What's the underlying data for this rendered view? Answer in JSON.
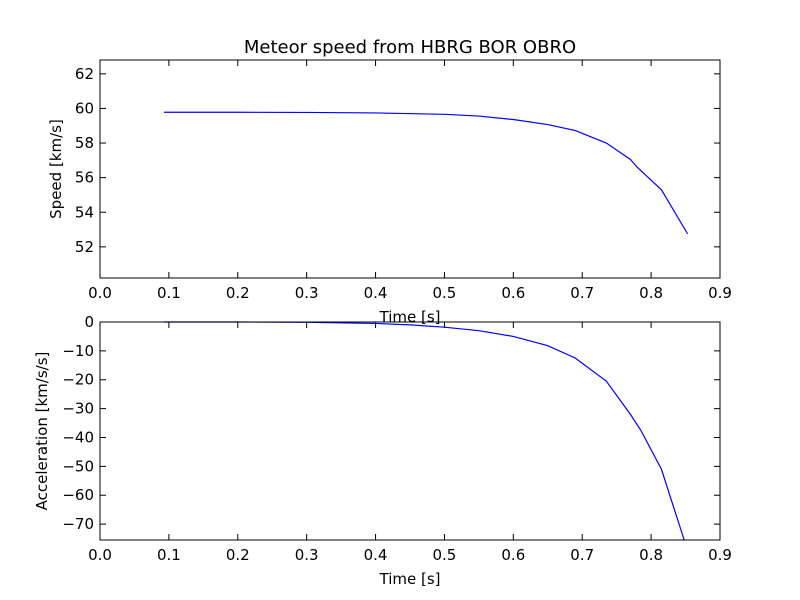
{
  "chart_data": [
    {
      "type": "line",
      "title": "Meteor speed from  HBRG BOR OBRO",
      "xlabel": "Time [s]",
      "ylabel": "Speed [km/s]",
      "xlim": [
        0.0,
        0.9
      ],
      "ylim": [
        50.2,
        62.8
      ],
      "xticks": [
        "0.0",
        "0.1",
        "0.2",
        "0.3",
        "0.4",
        "0.5",
        "0.6",
        "0.7",
        "0.8",
        "0.9"
      ],
      "yticks": [
        "52",
        "54",
        "56",
        "58",
        "60",
        "62"
      ],
      "grid": false,
      "series": [
        {
          "color": "#0000ff",
          "x": [
            0.093,
            0.2,
            0.3,
            0.4,
            0.5,
            0.55,
            0.6,
            0.65,
            0.69,
            0.735,
            0.77,
            0.78,
            0.815,
            0.853
          ],
          "y": [
            59.78,
            59.78,
            59.77,
            59.74,
            59.66,
            59.56,
            59.36,
            59.07,
            58.72,
            58.0,
            57.05,
            56.6,
            55.3,
            52.75
          ]
        }
      ]
    },
    {
      "type": "line",
      "title": "",
      "xlabel": "Time [s]",
      "ylabel": "Acceleration [km/s/s]",
      "xlim": [
        0.0,
        0.9
      ],
      "ylim": [
        -75.5,
        0.0
      ],
      "xticks": [
        "0.0",
        "0.1",
        "0.2",
        "0.3",
        "0.4",
        "0.5",
        "0.6",
        "0.7",
        "0.8",
        "0.9"
      ],
      "yticks": [
        "0",
        "−10",
        "−20",
        "−30",
        "−40",
        "−50",
        "−60",
        "−70"
      ],
      "grid": false,
      "series": [
        {
          "color": "#0000ff",
          "x": [
            0.093,
            0.2,
            0.3,
            0.4,
            0.45,
            0.5,
            0.55,
            0.6,
            0.65,
            0.69,
            0.735,
            0.77,
            0.785,
            0.815,
            0.848
          ],
          "y": [
            0.0,
            0.0,
            -0.1,
            -0.5,
            -1.0,
            -1.8,
            -3.0,
            -5.0,
            -8.2,
            -12.5,
            -20.5,
            -32.0,
            -37.5,
            -51.0,
            -75.5
          ]
        }
      ]
    }
  ]
}
